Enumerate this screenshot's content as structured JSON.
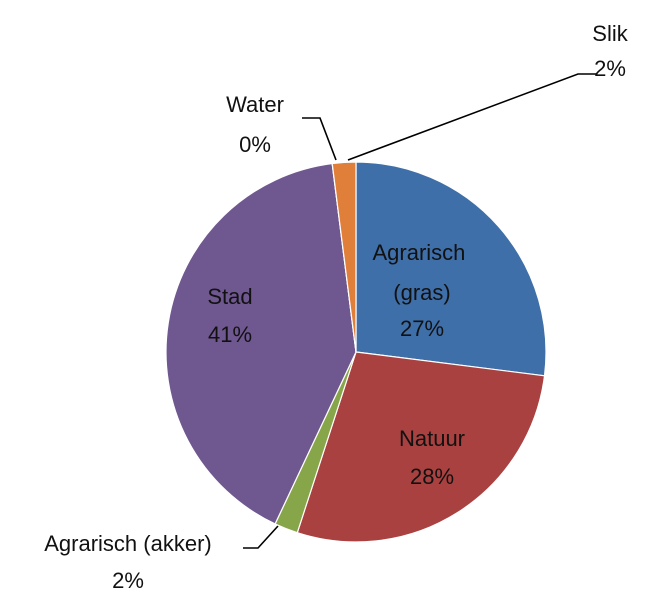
{
  "chart_data": {
    "type": "pie",
    "categories": [
      "Agrarisch (gras)",
      "Natuur",
      "Agrarisch (akker)",
      "Stad",
      "Water",
      "Slik"
    ],
    "values": [
      27,
      28,
      2,
      41,
      0,
      2
    ],
    "value_labels": [
      "27%",
      "28%",
      "2%",
      "41%",
      "0%",
      "2%"
    ],
    "colors": [
      "#3f6fa8",
      "#a8413f",
      "#87a64a",
      "#6f5790",
      "#4aa3c0",
      "#e07f3a"
    ]
  }
}
